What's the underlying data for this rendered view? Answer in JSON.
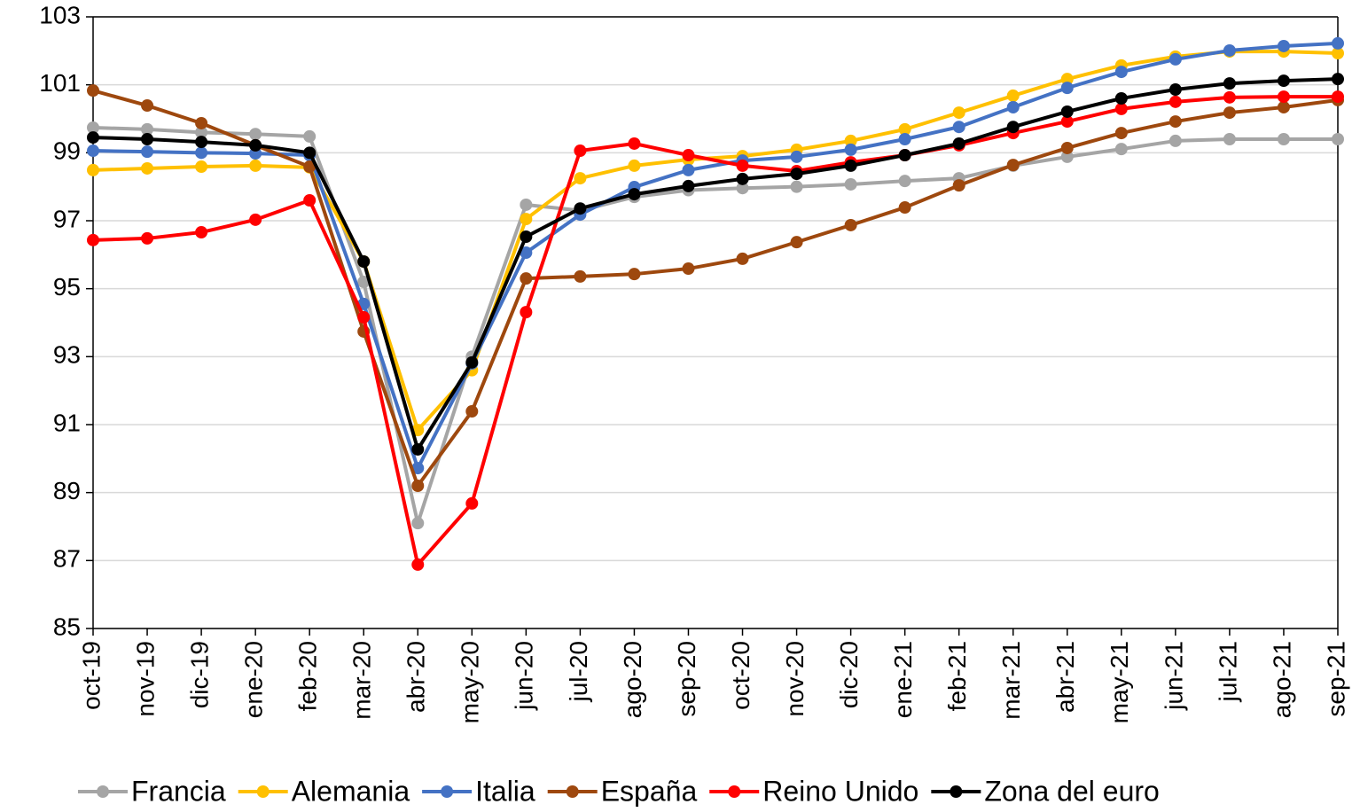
{
  "chart_data": {
    "type": "line",
    "categories": [
      "oct-19",
      "nov-19",
      "dic-19",
      "ene-20",
      "feb-20",
      "mar-20",
      "abr-20",
      "may-20",
      "jun-20",
      "jul-20",
      "ago-20",
      "sep-20",
      "oct-20",
      "nov-20",
      "dic-20",
      "ene-21",
      "feb-21",
      "mar-21",
      "abr-21",
      "may-21",
      "jun-21",
      "jul-21",
      "ago-21",
      "sep-21"
    ],
    "series": [
      {
        "name": "Francia",
        "color": "#a5a5a5",
        "values": [
          99.74,
          99.69,
          99.6,
          99.55,
          99.48,
          95.2,
          88.1,
          93.0,
          97.47,
          97.3,
          97.7,
          97.9,
          97.96,
          98.0,
          98.07,
          98.17,
          98.25,
          98.62,
          98.88,
          99.11,
          99.35,
          99.4,
          99.4,
          99.4
        ]
      },
      {
        "name": "Alemania",
        "color": "#ffc000",
        "values": [
          98.49,
          98.54,
          98.59,
          98.62,
          98.57,
          95.8,
          90.84,
          92.6,
          97.05,
          98.25,
          98.62,
          98.8,
          98.9,
          99.09,
          99.35,
          99.69,
          100.18,
          100.68,
          101.17,
          101.57,
          101.83,
          101.98,
          101.98,
          101.93
        ]
      },
      {
        "name": "Italia",
        "color": "#4472c4",
        "values": [
          99.06,
          99.03,
          99.0,
          98.98,
          98.93,
          94.55,
          89.72,
          92.8,
          96.06,
          97.18,
          97.99,
          98.49,
          98.77,
          98.88,
          99.09,
          99.4,
          99.76,
          100.34,
          100.91,
          101.38,
          101.75,
          102.01,
          102.14,
          102.22
        ]
      },
      {
        "name": "España",
        "color": "#9e480e",
        "values": [
          100.83,
          100.39,
          99.87,
          99.22,
          98.59,
          93.74,
          89.2,
          91.39,
          95.3,
          95.36,
          95.43,
          95.59,
          95.88,
          96.37,
          96.87,
          97.39,
          98.04,
          98.64,
          99.14,
          99.58,
          99.92,
          100.18,
          100.34,
          100.55
        ]
      },
      {
        "name": "Reino Unido",
        "color": "#ff0000",
        "values": [
          96.43,
          96.48,
          96.66,
          97.03,
          97.6,
          94.16,
          86.88,
          88.68,
          94.31,
          99.06,
          99.27,
          98.93,
          98.62,
          98.46,
          98.72,
          98.93,
          99.22,
          99.58,
          99.92,
          100.29,
          100.5,
          100.63,
          100.65,
          100.65
        ]
      },
      {
        "name": "Zona del euro",
        "color": "#000000",
        "values": [
          99.45,
          99.4,
          99.32,
          99.22,
          99.0,
          95.8,
          90.27,
          92.83,
          96.53,
          97.36,
          97.78,
          98.02,
          98.23,
          98.38,
          98.62,
          98.93,
          99.27,
          99.76,
          100.21,
          100.6,
          100.86,
          101.04,
          101.12,
          101.17
        ]
      }
    ],
    "ylim": [
      85,
      103
    ],
    "yticks": [
      85,
      87,
      89,
      91,
      93,
      95,
      97,
      99,
      101,
      103
    ],
    "grid": true,
    "legend": "bottom"
  }
}
